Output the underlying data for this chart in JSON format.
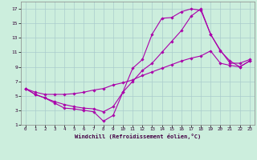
{
  "xlabel": "Windchill (Refroidissement éolien,°C)",
  "background_color": "#cceedd",
  "grid_color": "#aacccc",
  "line_color": "#aa00aa",
  "xlim": [
    -0.5,
    23.5
  ],
  "ylim": [
    1,
    18
  ],
  "xticks": [
    0,
    1,
    2,
    3,
    4,
    5,
    6,
    7,
    8,
    9,
    10,
    11,
    12,
    13,
    14,
    15,
    16,
    17,
    18,
    19,
    20,
    21,
    22,
    23
  ],
  "yticks": [
    1,
    3,
    5,
    7,
    9,
    11,
    13,
    15,
    17
  ],
  "series": [
    {
      "x": [
        0,
        1,
        2,
        3,
        4,
        5,
        6,
        7,
        8,
        9,
        10,
        11,
        12,
        13,
        14,
        15,
        16,
        17,
        18,
        19,
        20,
        21,
        22,
        23
      ],
      "y": [
        6.0,
        5.2,
        4.7,
        4.0,
        3.3,
        3.2,
        3.0,
        2.8,
        1.5,
        2.3,
        5.5,
        8.8,
        10.0,
        13.5,
        15.7,
        15.8,
        16.6,
        17.0,
        16.8,
        13.5,
        11.3,
        9.5,
        9.5,
        10.0
      ]
    },
    {
      "x": [
        0,
        1,
        2,
        3,
        4,
        5,
        6,
        7,
        8,
        9,
        10,
        11,
        12,
        13,
        14,
        15,
        16,
        17,
        18,
        19,
        20,
        21,
        22,
        23
      ],
      "y": [
        6.0,
        5.2,
        4.7,
        4.2,
        3.8,
        3.5,
        3.3,
        3.2,
        2.8,
        3.5,
        5.5,
        7.0,
        8.5,
        9.5,
        11.0,
        12.5,
        14.0,
        16.0,
        17.0,
        13.5,
        11.2,
        9.8,
        9.0,
        9.8
      ]
    },
    {
      "x": [
        0,
        1,
        2,
        3,
        4,
        5,
        6,
        7,
        8,
        9,
        10,
        11,
        12,
        13,
        14,
        15,
        16,
        17,
        18,
        19,
        20,
        21,
        22,
        23
      ],
      "y": [
        6.0,
        5.5,
        5.2,
        5.2,
        5.2,
        5.3,
        5.5,
        5.8,
        6.0,
        6.5,
        6.8,
        7.2,
        7.8,
        8.3,
        8.8,
        9.3,
        9.8,
        10.2,
        10.5,
        11.2,
        9.5,
        9.2,
        9.0,
        9.8
      ]
    }
  ]
}
